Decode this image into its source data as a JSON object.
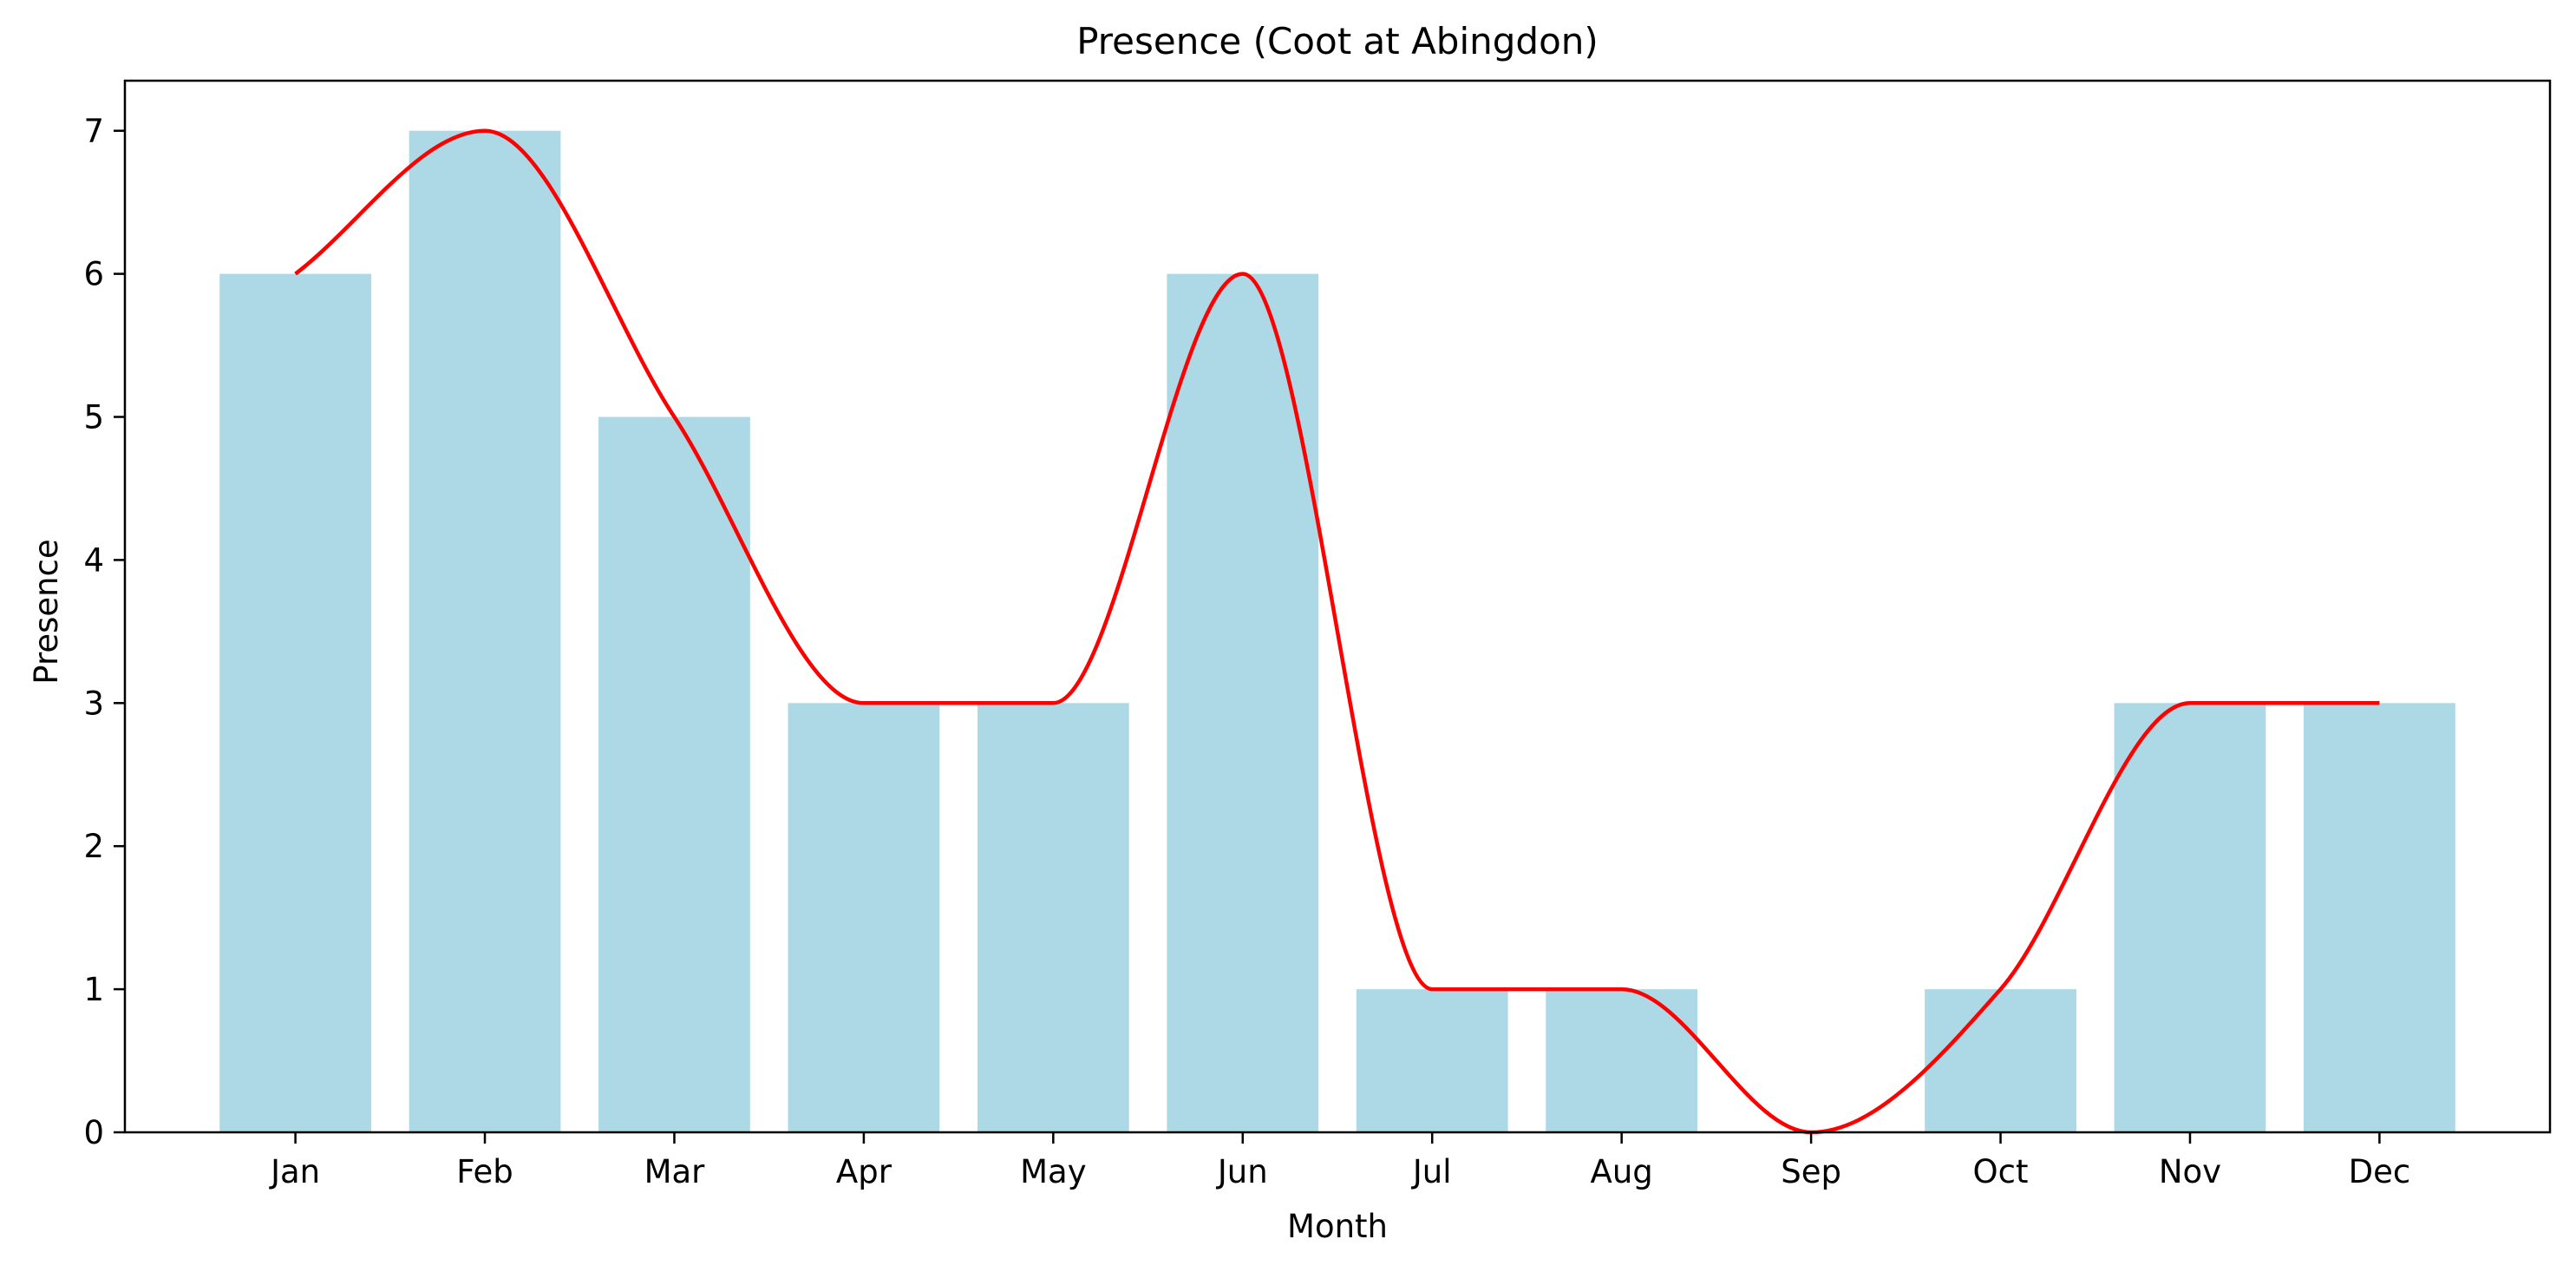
{
  "chart_data": {
    "type": "bar",
    "title": "Presence (Coot at Abingdon)",
    "xlabel": "Month",
    "ylabel": "Presence",
    "categories": [
      "Jan",
      "Feb",
      "Mar",
      "Apr",
      "May",
      "Jun",
      "Jul",
      "Aug",
      "Sep",
      "Oct",
      "Nov",
      "Dec"
    ],
    "values": [
      6,
      7,
      5,
      3,
      3,
      6,
      1,
      1,
      0,
      1,
      3,
      3
    ],
    "ylim": [
      0,
      7.35
    ],
    "yticks": [
      0,
      1,
      2,
      3,
      4,
      5,
      6,
      7
    ],
    "grid": false,
    "bar_color": "#add8e6",
    "line_color": "#ff0000",
    "overlay": "smoothed-line"
  }
}
